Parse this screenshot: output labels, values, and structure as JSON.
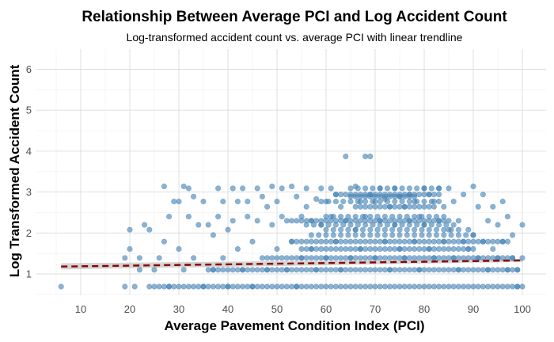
{
  "chart_data": {
    "type": "scatter",
    "title": "Relationship Between Average PCI and Log Accident Count",
    "subtitle": "Log-transformed accident count vs. average PCI with linear trendline",
    "xlabel": "Average Pavement Condition Index (PCI)",
    "ylabel": "Log Transformed Accident Count",
    "xlim": [
      3.3,
      102.5
    ],
    "ylim": [
      0.45,
      6.35
    ],
    "x_ticks": [
      "10",
      "20",
      "30",
      "40",
      "50",
      "60",
      "70",
      "80",
      "90",
      "100"
    ],
    "y_ticks": [
      "1",
      "2",
      "3",
      "4",
      "5",
      "6"
    ],
    "grid": true,
    "legend": "none",
    "point_color": "#4682b4",
    "trend_color": "#8b0000",
    "band_color": "#bdbdbd",
    "trendline": {
      "x": [
        6,
        100
      ],
      "y": [
        1.18,
        1.33
      ],
      "ci_low": [
        1.11,
        1.29
      ],
      "ci_high": [
        1.26,
        1.37
      ]
    },
    "points": [
      [
        6,
        0.69
      ],
      [
        19,
        0.69
      ],
      [
        19,
        1.39
      ],
      [
        20,
        1.61
      ],
      [
        20,
        2.08
      ],
      [
        21,
        0.69
      ],
      [
        22,
        1.1
      ],
      [
        22,
        1.39
      ],
      [
        23,
        2.2
      ],
      [
        24,
        2.08
      ],
      [
        24,
        0.69
      ],
      [
        25,
        1.1
      ],
      [
        26,
        1.39
      ],
      [
        27,
        3.14
      ],
      [
        27,
        1.79
      ],
      [
        28,
        2.4
      ],
      [
        28,
        0.69
      ],
      [
        29,
        2.77
      ],
      [
        30,
        1.61
      ],
      [
        30,
        2.77
      ],
      [
        31,
        3.14
      ],
      [
        31,
        1.1
      ],
      [
        32,
        3.09
      ],
      [
        32,
        2.4
      ],
      [
        33,
        2.89
      ],
      [
        33,
        1.39
      ],
      [
        34,
        2.2
      ],
      [
        35,
        2.77
      ],
      [
        35,
        0.69
      ],
      [
        36,
        2.2
      ],
      [
        37,
        1.95
      ],
      [
        37,
        1.1
      ],
      [
        38,
        3.09
      ],
      [
        38,
        2.4
      ],
      [
        39,
        2.77
      ],
      [
        39,
        1.39
      ],
      [
        40,
        2.08
      ],
      [
        40,
        0.69
      ],
      [
        41,
        3.09
      ],
      [
        41,
        2.3
      ],
      [
        42,
        2.77
      ],
      [
        42,
        1.61
      ],
      [
        43,
        3.09
      ],
      [
        43,
        1.1
      ],
      [
        44,
        2.4
      ],
      [
        44,
        2.77
      ],
      [
        45,
        1.79
      ],
      [
        45,
        0.69
      ],
      [
        46,
        3.09
      ],
      [
        46,
        2.3
      ],
      [
        47,
        2.89
      ],
      [
        47,
        1.39
      ],
      [
        48,
        2.64
      ],
      [
        48,
        1.1
      ],
      [
        49,
        3.14
      ],
      [
        49,
        2.2
      ],
      [
        50,
        2.77
      ],
      [
        50,
        1.61
      ],
      [
        51,
        3.09
      ],
      [
        51,
        2.4
      ],
      [
        52,
        2.3
      ],
      [
        52,
        1.1
      ],
      [
        53,
        3.14
      ],
      [
        53,
        1.79
      ],
      [
        54,
        2.89
      ],
      [
        54,
        0.69
      ],
      [
        55,
        2.4
      ],
      [
        55,
        1.39
      ],
      [
        56,
        3.09
      ],
      [
        56,
        2.64
      ],
      [
        57,
        2.3
      ],
      [
        57,
        1.61
      ],
      [
        58,
        2.83
      ],
      [
        58,
        1.1
      ],
      [
        59,
        3.09
      ],
      [
        59,
        2.2
      ],
      [
        60,
        2.77
      ],
      [
        60,
        1.39
      ],
      [
        61,
        3.09
      ],
      [
        61,
        2.4
      ],
      [
        62,
        2.94
      ],
      [
        62,
        1.79
      ],
      [
        63,
        2.64
      ],
      [
        63,
        1.1
      ],
      [
        64,
        3.87
      ],
      [
        64,
        2.3
      ],
      [
        65,
        2.89
      ],
      [
        65,
        1.39
      ],
      [
        66,
        3.14
      ],
      [
        66,
        2.08
      ],
      [
        67,
        2.77
      ],
      [
        67,
        1.61
      ],
      [
        68,
        3.87
      ],
      [
        68,
        2.4
      ],
      [
        69,
        3.87
      ],
      [
        69,
        2.94
      ],
      [
        70,
        2.77
      ],
      [
        70,
        1.39
      ],
      [
        71,
        3.09
      ],
      [
        71,
        2.3
      ],
      [
        72,
        2.83
      ],
      [
        72,
        1.79
      ],
      [
        73,
        2.64
      ],
      [
        73,
        1.1
      ],
      [
        74,
        3.09
      ],
      [
        74,
        2.2
      ],
      [
        75,
        2.89
      ],
      [
        75,
        1.61
      ],
      [
        76,
        2.64
      ],
      [
        76,
        1.39
      ],
      [
        77,
        2.94
      ],
      [
        77,
        2.3
      ],
      [
        78,
        2.77
      ],
      [
        78,
        1.79
      ],
      [
        79,
        2.4
      ],
      [
        79,
        1.1
      ],
      [
        80,
        3.09
      ],
      [
        80,
        2.2
      ],
      [
        81,
        2.94
      ],
      [
        81,
        1.61
      ],
      [
        82,
        2.77
      ],
      [
        82,
        1.39
      ],
      [
        83,
        3.09
      ],
      [
        83,
        2.3
      ],
      [
        84,
        2.64
      ],
      [
        84,
        1.79
      ],
      [
        85,
        3.09
      ],
      [
        85,
        2.08
      ],
      [
        86,
        2.77
      ],
      [
        86,
        1.39
      ],
      [
        87,
        2.3
      ],
      [
        87,
        1.1
      ],
      [
        88,
        2.94
      ],
      [
        88,
        1.79
      ],
      [
        89,
        2.08
      ],
      [
        89,
        1.61
      ],
      [
        90,
        3.14
      ],
      [
        90,
        1.95
      ],
      [
        91,
        2.64
      ],
      [
        91,
        1.39
      ],
      [
        92,
        2.94
      ],
      [
        92,
        1.79
      ],
      [
        93,
        2.3
      ],
      [
        93,
        1.1
      ],
      [
        94,
        2.64
      ],
      [
        94,
        1.61
      ],
      [
        95,
        2.2
      ],
      [
        95,
        1.39
      ],
      [
        96,
        2.77
      ],
      [
        96,
        1.79
      ],
      [
        97,
        2.4
      ],
      [
        97,
        1.1
      ],
      [
        98,
        1.95
      ],
      [
        98,
        1.39
      ],
      [
        99,
        1.1
      ],
      [
        99,
        0.69
      ],
      [
        100,
        2.2
      ],
      [
        100,
        1.39
      ]
    ],
    "bands": [
      {
        "y": 0.69,
        "x_range": [
          25,
          100
        ],
        "step": 1
      },
      {
        "y": 1.1,
        "x_range": [
          36,
          99
        ],
        "step": 1
      },
      {
        "y": 1.39,
        "x_range": [
          48,
          98
        ],
        "step": 1
      },
      {
        "y": 1.61,
        "x_range": [
          55,
          90
        ],
        "step": 1
      },
      {
        "y": 1.79,
        "x_range": [
          53,
          97
        ],
        "step": 1
      },
      {
        "y": 1.95,
        "x_range": [
          57,
          90
        ],
        "step": 1.5
      },
      {
        "y": 2.08,
        "x_range": [
          60,
          88
        ],
        "step": 1.5
      },
      {
        "y": 2.2,
        "x_range": [
          56,
          86
        ],
        "step": 1.5
      },
      {
        "y": 2.3,
        "x_range": [
          53,
          85
        ],
        "step": 1
      },
      {
        "y": 2.4,
        "x_range": [
          60,
          84
        ],
        "step": 1.5
      },
      {
        "y": 2.64,
        "x_range": [
          66,
          82
        ],
        "step": 1
      },
      {
        "y": 2.77,
        "x_range": [
          59,
          84
        ],
        "step": 1.5
      },
      {
        "y": 2.89,
        "x_range": [
          66,
          78
        ],
        "step": 1
      },
      {
        "y": 2.94,
        "x_range": [
          62,
          83
        ],
        "step": 1
      },
      {
        "y": 3.09,
        "x_range": [
          65,
          84
        ],
        "step": 1.5
      }
    ]
  }
}
